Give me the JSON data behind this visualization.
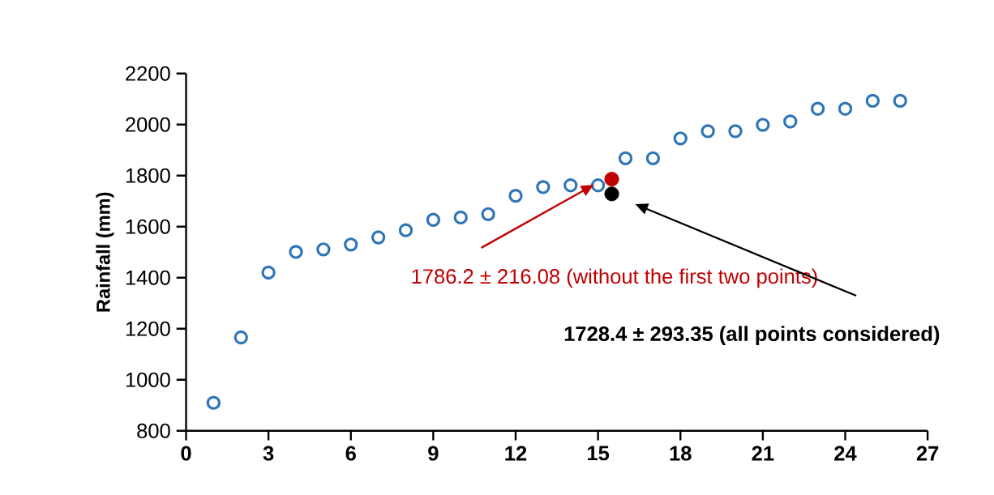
{
  "chart_data": {
    "type": "scatter",
    "ylabel": "Rainfall (mm)",
    "xlim": [
      0,
      27
    ],
    "xticks": [
      0,
      3,
      6,
      9,
      12,
      15,
      18,
      21,
      24,
      27
    ],
    "ylim": [
      800,
      2200
    ],
    "yticks": [
      800,
      1000,
      1200,
      1400,
      1600,
      1800,
      2000,
      2200
    ],
    "grid": false,
    "marker": "circle",
    "series": [
      {
        "color": "#2e75b6",
        "x": [
          1,
          2,
          3,
          4,
          5,
          6,
          7,
          8,
          9,
          10,
          11,
          12,
          13,
          14,
          15,
          16,
          17,
          18,
          19,
          20,
          21,
          22,
          23,
          24,
          25,
          26
        ],
        "values": [
          910,
          1166,
          1420,
          1501,
          1511,
          1530,
          1558,
          1586,
          1627,
          1636,
          1649,
          1721,
          1755,
          1762,
          1762,
          1868,
          1868,
          1946,
          1974,
          1974,
          1999,
          2012,
          2062,
          2062,
          2093,
          2093
        ]
      },
      {
        "color": "#c00000",
        "x": [
          15.5
        ],
        "values": [
          1786.2
        ]
      },
      {
        "color": "#000000",
        "x": [
          15.5
        ],
        "values": [
          1728.4
        ]
      }
    ],
    "annotations": [
      "1786.2 ± 216.08 (without the first two points)",
      "1728.4 ± 293.35 (all points considered)"
    ]
  }
}
